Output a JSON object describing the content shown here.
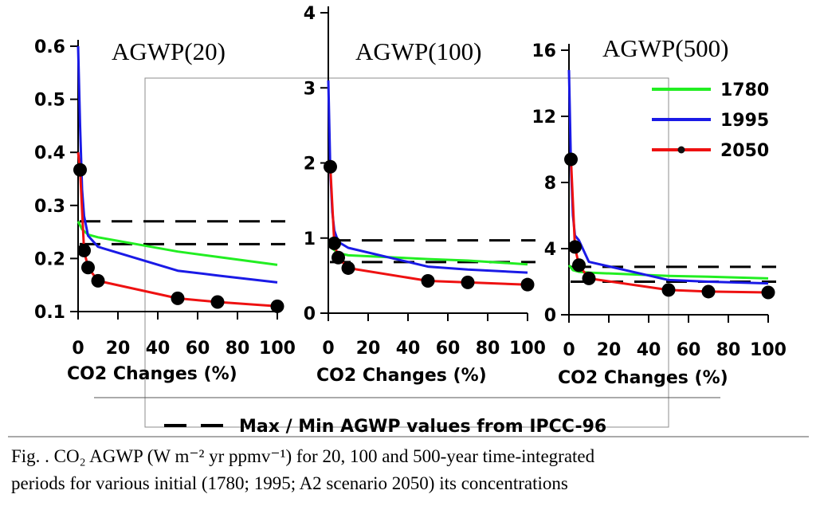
{
  "legend": {
    "items": [
      {
        "label": "1780",
        "color": "#22ee22",
        "marker": false
      },
      {
        "label": "1995",
        "color": "#1a1ae6",
        "marker": false
      },
      {
        "label": "2050",
        "color": "#ee1111",
        "marker": true
      }
    ],
    "dashed_label": "Max / Min AGWP values from IPCC-96"
  },
  "caption": {
    "line1": "Fig. . CO₂ AGWP (W m⁻² yr ppmv⁻¹) for 20, 100 and 500-year time-integrated",
    "line2": "periods for various initial (1780; 1995;  A2 scenario 2050) its concentrations"
  },
  "chart_data": [
    {
      "type": "line",
      "title": "AGWP(20)",
      "xlabel": "CO2 Changes (%)",
      "xlim": [
        0,
        100
      ],
      "ylim": [
        0.1,
        0.6
      ],
      "x_ticks": [
        0,
        20,
        40,
        60,
        80,
        100
      ],
      "x_tick_labels": [
        "0",
        "20",
        "40",
        "60",
        "80",
        "100"
      ],
      "y_ticks": [
        0.1,
        0.2,
        0.3,
        0.4,
        0.5,
        0.6
      ],
      "y_tick_labels": [
        "0.1",
        "0.2",
        "0.3",
        "0.4",
        "0.5",
        "0.6"
      ],
      "dashed_lines": [
        0.27,
        0.227
      ],
      "series": [
        {
          "name": "1780",
          "x": [
            0,
            2,
            5,
            10,
            50,
            70,
            100
          ],
          "y": [
            0.27,
            0.255,
            0.245,
            0.24,
            0.213,
            0.203,
            0.188
          ]
        },
        {
          "name": "1995",
          "x": [
            0,
            1,
            2,
            3,
            5,
            10,
            50,
            70,
            100
          ],
          "y": [
            0.6,
            0.45,
            0.33,
            0.28,
            0.243,
            0.222,
            0.177,
            0.168,
            0.155
          ]
        },
        {
          "name": "2050",
          "x": [
            0,
            1,
            3,
            5,
            10,
            50,
            70,
            100
          ],
          "y": [
            0.4,
            0.367,
            0.215,
            0.183,
            0.158,
            0.125,
            0.118,
            0.11
          ]
        }
      ],
      "markers": {
        "series": "2050",
        "x": [
          1,
          3,
          5,
          10,
          50,
          70,
          100
        ],
        "y": [
          0.367,
          0.215,
          0.183,
          0.158,
          0.125,
          0.118,
          0.11
        ]
      }
    },
    {
      "type": "line",
      "title": "AGWP(100)",
      "xlabel": "CO2 Changes (%)",
      "xlim": [
        0,
        100
      ],
      "ylim": [
        0,
        4
      ],
      "x_ticks": [
        0,
        20,
        40,
        60,
        80,
        100
      ],
      "x_tick_labels": [
        "0",
        "20",
        "40",
        "60",
        "80",
        "100"
      ],
      "y_ticks": [
        0,
        1,
        2,
        3,
        4
      ],
      "y_tick_labels": [
        "0",
        "1",
        "2",
        "3",
        "4"
      ],
      "dashed_lines": [
        0.97,
        0.68
      ],
      "series": [
        {
          "name": "1780",
          "x": [
            0,
            2,
            5,
            10,
            50,
            70,
            100
          ],
          "y": [
            0.95,
            0.86,
            0.8,
            0.77,
            0.72,
            0.7,
            0.65
          ]
        },
        {
          "name": "1995",
          "x": [
            0,
            1,
            2,
            3,
            5,
            10,
            50,
            70,
            100
          ],
          "y": [
            3.1,
            1.9,
            1.35,
            1.1,
            0.95,
            0.87,
            0.62,
            0.58,
            0.54
          ]
        },
        {
          "name": "2050",
          "x": [
            0,
            1,
            3,
            5,
            10,
            50,
            70,
            100
          ],
          "y": [
            1.96,
            1.95,
            0.93,
            0.74,
            0.6,
            0.43,
            0.41,
            0.38
          ]
        }
      ],
      "markers": {
        "series": "2050",
        "x": [
          1,
          3,
          5,
          10,
          50,
          70,
          100
        ],
        "y": [
          1.95,
          0.93,
          0.74,
          0.6,
          0.43,
          0.41,
          0.38
        ]
      }
    },
    {
      "type": "line",
      "title": "AGWP(500)",
      "xlabel": "CO2 Changes (%)",
      "xlim": [
        0,
        100
      ],
      "ylim": [
        0,
        16
      ],
      "x_ticks": [
        0,
        20,
        40,
        60,
        80,
        100
      ],
      "x_tick_labels": [
        "0",
        "20",
        "40",
        "60",
        "80",
        "100"
      ],
      "y_ticks": [
        0,
        4,
        8,
        12,
        16
      ],
      "y_tick_labels": [
        "0",
        "4",
        "8",
        "12",
        "16"
      ],
      "dashed_lines": [
        2.9,
        2.0
      ],
      "series": [
        {
          "name": "1780",
          "x": [
            0,
            2,
            5,
            10,
            50,
            70,
            100
          ],
          "y": [
            3.0,
            2.7,
            2.6,
            2.55,
            2.35,
            2.3,
            2.2
          ]
        },
        {
          "name": "1995",
          "x": [
            0,
            1,
            2,
            3,
            5,
            10,
            50,
            70,
            100
          ],
          "y": [
            14.8,
            9.0,
            6.0,
            4.8,
            4.5,
            3.2,
            2.1,
            2.0,
            1.9
          ]
        },
        {
          "name": "2050",
          "x": [
            0,
            1,
            3,
            5,
            10,
            50,
            70,
            100
          ],
          "y": [
            9.5,
            9.4,
            4.1,
            3.0,
            2.2,
            1.5,
            1.4,
            1.35
          ]
        }
      ],
      "markers": {
        "series": "2050",
        "x": [
          1,
          3,
          5,
          10,
          50,
          70,
          100
        ],
        "y": [
          9.4,
          4.1,
          3.0,
          2.2,
          1.5,
          1.4,
          1.35
        ]
      }
    }
  ]
}
